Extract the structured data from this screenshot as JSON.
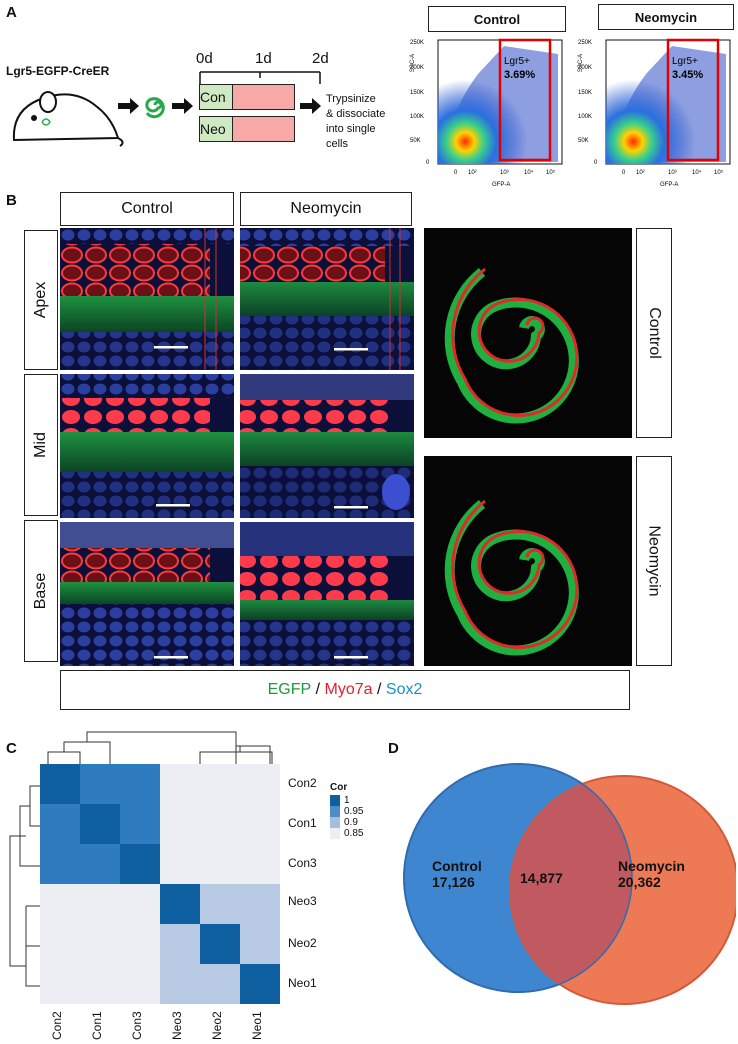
{
  "panels": {
    "A": "A",
    "B": "B",
    "C": "C",
    "D": "D"
  },
  "panelA": {
    "mouse_label": "Lgr5-EGFP-CreER",
    "timeline": {
      "t0": "0d",
      "t1": "1d",
      "t2": "2d"
    },
    "groups": [
      "Con",
      "Neo"
    ],
    "step_text": [
      "Trypsinize",
      "& dissociate",
      "into single",
      "cells"
    ],
    "flow": [
      {
        "title": "Control",
        "gate_label": "Lgr5+",
        "gate_value": "3.69%"
      },
      {
        "title": "Neomycin",
        "gate_label": "Lgr5+",
        "gate_value": "3.45%"
      }
    ],
    "y_axis_label": "SSC-A",
    "x_axis_label": "GFP-A",
    "y_ticks": [
      "250K",
      "200K",
      "150K",
      "100K",
      "50K",
      "0"
    ],
    "x_ticks": [
      "0",
      "10²",
      "10³",
      "10⁴",
      "10⁵"
    ]
  },
  "panelB": {
    "col_headers": [
      "Control",
      "Neomycin"
    ],
    "row_labels": [
      "Apex",
      "Mid",
      "Base"
    ],
    "whole_labels": [
      "Control",
      "Neomycin"
    ],
    "legend": {
      "egfp": "EGFP",
      "sep": " / ",
      "myo": "Myo7a",
      "sox": "Sox2"
    },
    "colors": {
      "egfp": "#1a9a3a",
      "myo": "#e0202a",
      "sox": "#1a8fd0"
    }
  },
  "panelC": {
    "labels": [
      "Con2",
      "Con1",
      "Con3",
      "Neo3",
      "Neo2",
      "Neo1"
    ],
    "matrix": [
      [
        1,
        0.96,
        0.96,
        0.85,
        0.85,
        0.85
      ],
      [
        0.96,
        1,
        0.96,
        0.85,
        0.85,
        0.85
      ],
      [
        0.96,
        0.96,
        1,
        0.85,
        0.85,
        0.85
      ],
      [
        0.85,
        0.85,
        0.85,
        1,
        0.9,
        0.9
      ],
      [
        0.85,
        0.85,
        0.85,
        0.9,
        1,
        0.9
      ],
      [
        0.85,
        0.85,
        0.85,
        0.9,
        0.9,
        1
      ]
    ],
    "legend_title": "Cor",
    "legend_items": [
      "1",
      "0.95",
      "0.9",
      "0.85"
    ]
  },
  "panelD": {
    "left_name": "Control",
    "left_value": "17,126",
    "overlap": "14,877",
    "right_name": "Neomycin",
    "right_value": "20,362",
    "colors": {
      "left": "#3f86d0",
      "right": "#ee7a55",
      "overlap": "#c05a60"
    }
  }
}
